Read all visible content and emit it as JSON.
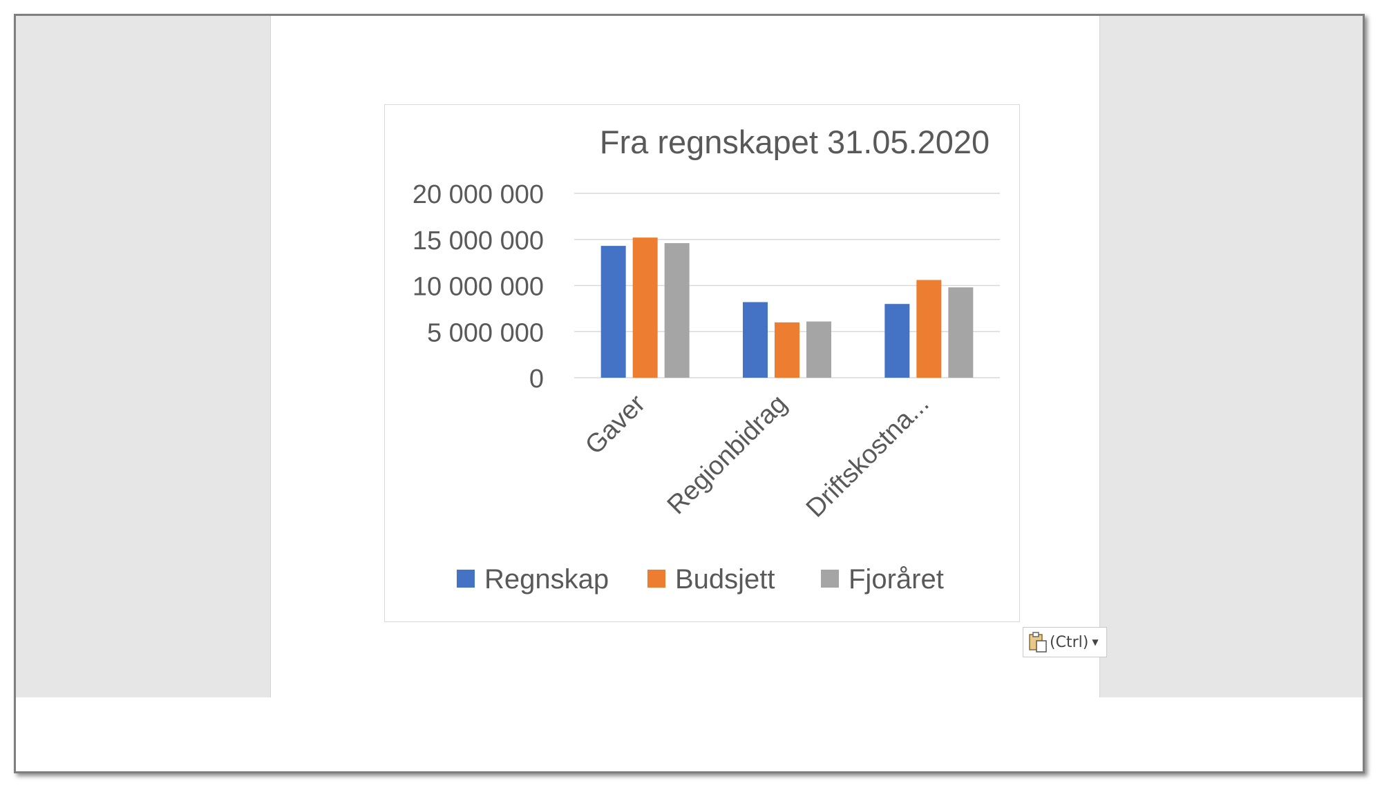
{
  "paste_options": {
    "label": "(Ctrl)"
  },
  "chart_data": {
    "type": "bar",
    "title": "Fra regnskapet 31.05.2020",
    "categories": [
      "Gaver",
      "Regionbidrag",
      "Driftskostna..."
    ],
    "series": [
      {
        "name": "Regnskap",
        "color": "#4472c4",
        "values": [
          14300000,
          8200000,
          8000000
        ]
      },
      {
        "name": "Budsjett",
        "color": "#ed7d31",
        "values": [
          15200000,
          6000000,
          10600000
        ]
      },
      {
        "name": "Fjoråret",
        "color": "#a5a5a5",
        "values": [
          14600000,
          6100000,
          9800000
        ]
      }
    ],
    "ylim": [
      0,
      20000000
    ],
    "yticks": [
      0,
      5000000,
      10000000,
      15000000,
      20000000
    ],
    "ytick_labels": [
      "0",
      "5 000 000",
      "10 000 000",
      "15 000 000",
      "20 000 000"
    ],
    "grid": true,
    "legend_position": "bottom"
  }
}
